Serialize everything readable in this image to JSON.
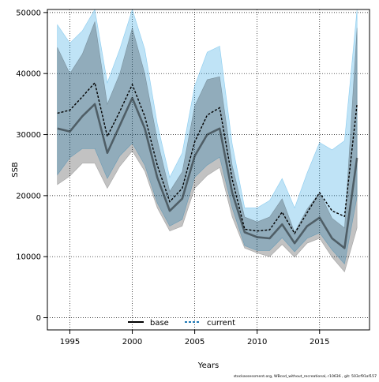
{
  "chart_data": {
    "type": "line",
    "xlabel": "Years",
    "ylabel": "SSB",
    "xlim": [
      1993.2,
      2019.0
    ],
    "ylim": [
      -2000,
      50500
    ],
    "xticks": [
      "1995",
      "2000",
      "2005",
      "2010",
      "2015"
    ],
    "yticks": [
      "0",
      "10000",
      "20000",
      "30000",
      "40000",
      "50000"
    ],
    "grid": true,
    "legend_position": "bottom-center",
    "footer": "stockassessment.org, WBcod_without_recreational, r10636 , git: 503cf91af157",
    "x": [
      1994,
      1995,
      1996,
      1997,
      1998,
      1999,
      2000,
      2001,
      2002,
      2003,
      2004,
      2005,
      2006,
      2007,
      2008,
      2009,
      2010,
      2011,
      2012,
      2013,
      2014,
      2015,
      2016,
      2017,
      2018
    ],
    "series": [
      {
        "name": "base",
        "color": "#000000",
        "style": "solid",
        "values": [
          31000,
          30500,
          33000,
          35000,
          27000,
          31500,
          36000,
          31000,
          23000,
          17500,
          19500,
          26500,
          30000,
          31000,
          20500,
          14000,
          13200,
          13000,
          15300,
          12200,
          15000,
          16400,
          13000,
          11400,
          26200
        ],
        "lower": [
          21800,
          23200,
          25300,
          25300,
          21200,
          24800,
          27300,
          24000,
          18000,
          14200,
          15000,
          21200,
          23300,
          24600,
          16500,
          11400,
          10600,
          10000,
          12000,
          9900,
          12200,
          13000,
          9900,
          7500,
          14700
        ],
        "upper": [
          44300,
          40000,
          43200,
          48500,
          35000,
          40000,
          47500,
          40000,
          29200,
          20700,
          23900,
          34700,
          39000,
          39500,
          25000,
          16500,
          15700,
          16500,
          19500,
          14000,
          17800,
          20500,
          16300,
          14700,
          47500
        ]
      },
      {
        "name": "current",
        "color": "#1f78b4",
        "style": "dashed",
        "values": [
          33500,
          34000,
          36200,
          38500,
          29700,
          33800,
          38200,
          33000,
          25000,
          19000,
          21200,
          28800,
          33200,
          34400,
          22700,
          14500,
          14200,
          14400,
          17300,
          13800,
          17200,
          20500,
          17500,
          16600,
          35000
        ],
        "lower": [
          23400,
          26200,
          27700,
          27700,
          22800,
          26500,
          28600,
          25000,
          18800,
          15000,
          16100,
          23000,
          25000,
          26300,
          18000,
          11800,
          11000,
          11000,
          13100,
          10800,
          13000,
          13900,
          11100,
          8800,
          19800
        ],
        "upper": [
          48000,
          45000,
          47000,
          52500,
          38500,
          44000,
          52000,
          44000,
          31800,
          23000,
          27000,
          38000,
          43500,
          44500,
          28500,
          18000,
          18000,
          19200,
          22800,
          18000,
          23700,
          28700,
          27500,
          29000,
          62000
        ]
      }
    ]
  }
}
